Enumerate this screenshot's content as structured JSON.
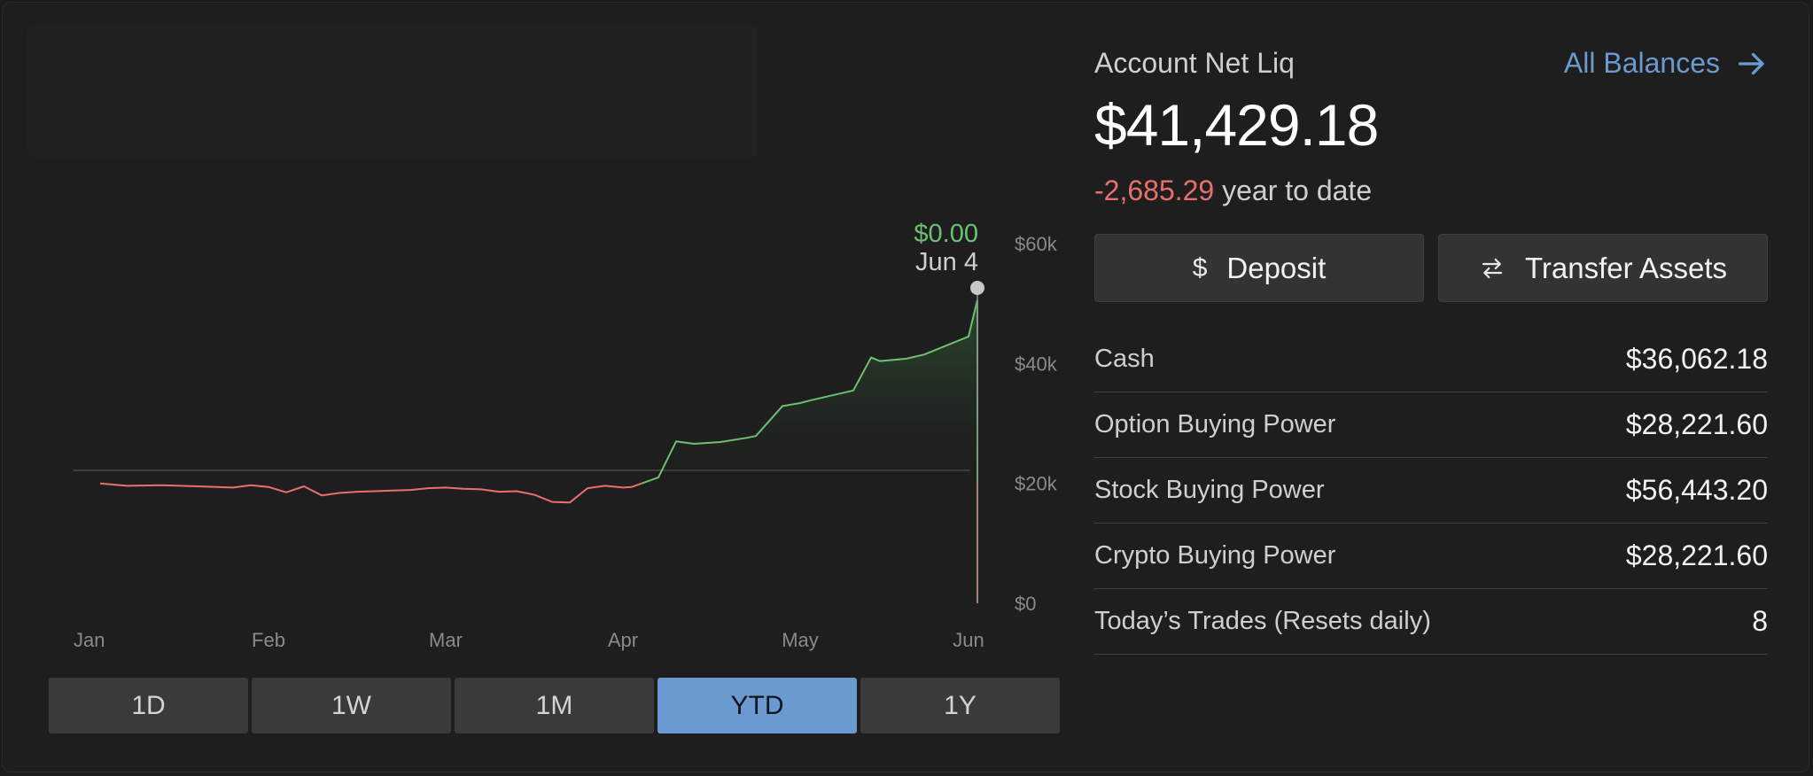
{
  "account": {
    "net_liq_label": "Account Net Liq",
    "all_balances_label": "All Balances",
    "net_liq_value": "$41,429.18",
    "ytd_change": "-2,685.29",
    "ytd_suffix": "year to date"
  },
  "actions": {
    "deposit_icon": "$",
    "deposit_label": "Deposit",
    "transfer_label": "Transfer Assets"
  },
  "balances": [
    {
      "label": "Cash",
      "value": "$36,062.18"
    },
    {
      "label": "Option Buying Power",
      "value": "$28,221.60"
    },
    {
      "label": "Stock Buying Power",
      "value": "$56,443.20"
    },
    {
      "label": "Crypto Buying Power",
      "value": "$28,221.60"
    },
    {
      "label": "Today’s Trades (Resets daily)",
      "value": "8"
    }
  ],
  "ranges": [
    "1D",
    "1W",
    "1M",
    "YTD",
    "1Y"
  ],
  "selected_range": "YTD",
  "colors": {
    "accent": "#6a9ad0",
    "positive": "#6cc070",
    "negative": "#e8706c",
    "background": "#1e1e1e"
  },
  "chart_data": {
    "type": "area",
    "hover": {
      "value": "$0.00",
      "date": "Jun 4"
    },
    "x_tick_labels": [
      "Jan",
      "Feb",
      "Mar",
      "Apr",
      "May",
      "Jun"
    ],
    "y_tick_labels": [
      "$60k",
      "$40k",
      "$20k",
      "$0"
    ],
    "ylim": [
      0,
      60000
    ],
    "baseline": 20000,
    "x_months": [
      0,
      1,
      2,
      3,
      4,
      5
    ],
    "series": [
      {
        "x": [
          0.05,
          0.2,
          0.4,
          0.6,
          0.8,
          0.9,
          1.0,
          1.1,
          1.2,
          1.3,
          1.4,
          1.5,
          1.6,
          1.7,
          1.8,
          1.9,
          2.0,
          2.1,
          2.2,
          2.3,
          2.4,
          2.5,
          2.6,
          2.7,
          2.8,
          2.9,
          3.0,
          3.05,
          3.2,
          3.3,
          3.4,
          3.55,
          3.7,
          3.75,
          3.9,
          4.0,
          4.05,
          4.3,
          4.4,
          4.45,
          4.6,
          4.7,
          4.95,
          5.0
        ],
        "values": [
          20000,
          19600,
          19700,
          19500,
          19300,
          19700,
          19400,
          18500,
          19500,
          18000,
          18400,
          18600,
          18700,
          18800,
          18900,
          19200,
          19300,
          19100,
          19000,
          18600,
          18700,
          18100,
          16900,
          16800,
          19200,
          19600,
          19300,
          19400,
          21000,
          27000,
          26600,
          26900,
          27600,
          27900,
          32900,
          33400,
          33800,
          35500,
          41000,
          40400,
          40800,
          41500,
          44500,
          50600
        ]
      }
    ],
    "end_drop_value": 0
  }
}
